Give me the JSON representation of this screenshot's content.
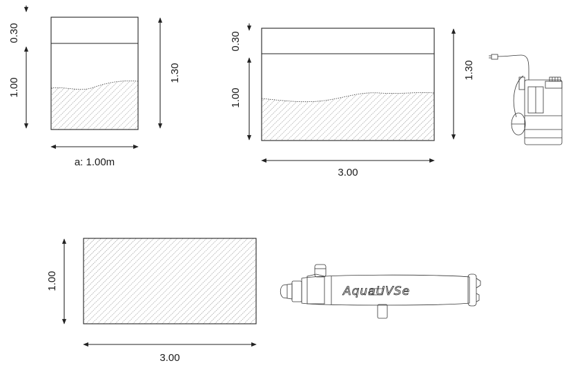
{
  "tank_small": {
    "dim_top": "0.30",
    "dim_water": "1.00",
    "dim_total": "1.30",
    "width_label": "a: 1.00m"
  },
  "tank_large": {
    "dim_top": "0.30",
    "dim_water": "1.00",
    "dim_total": "1.30",
    "width_label": "3.00"
  },
  "plan_view": {
    "dim_depth": "1.00",
    "dim_width": "3.00"
  },
  "uv_filter": {
    "brand_text": "AquaUVSe"
  },
  "icons": [
    "submersible-pump-icon",
    "uv-sterilizer-icon"
  ]
}
